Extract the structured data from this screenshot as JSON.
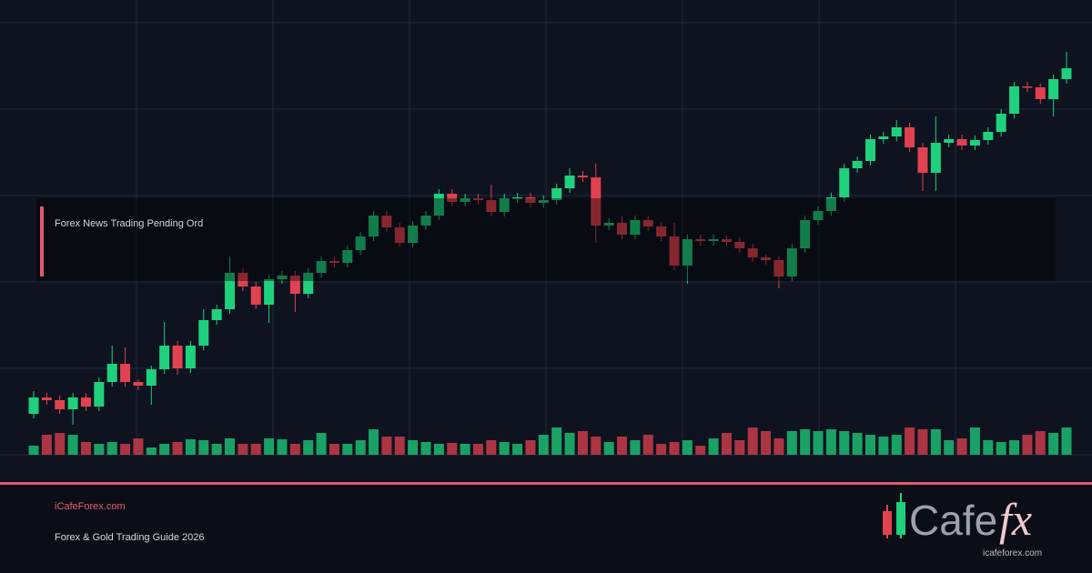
{
  "chart_data": {
    "type": "candlestick",
    "annotation": "Forex News Trading Pending Ord",
    "open": [
      45,
      63,
      60,
      50,
      63,
      53,
      80,
      100,
      80,
      76,
      94,
      120,
      95,
      120,
      148,
      160,
      200,
      185,
      165,
      193,
      197,
      177,
      200,
      213,
      211,
      225,
      240,
      263,
      250,
      233,
      252,
      263,
      287,
      278,
      282,
      280,
      267,
      282,
      283,
      277,
      280,
      293,
      307,
      305,
      252,
      255,
      242,
      258,
      251,
      240,
      208,
      237,
      235,
      237,
      234,
      227,
      217,
      214,
      196,
      227,
      258,
      268,
      283,
      315,
      323,
      347,
      350,
      360,
      338,
      310,
      343,
      347,
      340,
      346,
      355,
      375,
      405,
      404,
      391,
      413
    ],
    "high": [
      70,
      68,
      65,
      68,
      68,
      85,
      120,
      118,
      83,
      98,
      146,
      125,
      125,
      160,
      165,
      218,
      205,
      190,
      198,
      202,
      202,
      205,
      218,
      218,
      230,
      245,
      268,
      268,
      255,
      257,
      268,
      292,
      292,
      287,
      287,
      297,
      287,
      288,
      288,
      285,
      298,
      315,
      312,
      320,
      260,
      262,
      263,
      263,
      256,
      255,
      242,
      242,
      242,
      241,
      239,
      232,
      220,
      219,
      232,
      263,
      273,
      288,
      320,
      328,
      352,
      355,
      368,
      365,
      343,
      372,
      352,
      352,
      351,
      360,
      380,
      410,
      410,
      408,
      418,
      443
    ],
    "low": [
      40,
      55,
      45,
      33,
      48,
      48,
      75,
      75,
      71,
      55,
      89,
      88,
      90,
      115,
      143,
      155,
      180,
      160,
      145,
      188,
      157,
      172,
      195,
      206,
      206,
      220,
      235,
      245,
      228,
      228,
      247,
      258,
      273,
      273,
      275,
      262,
      262,
      277,
      272,
      272,
      275,
      288,
      300,
      233,
      247,
      237,
      237,
      246,
      235,
      203,
      188,
      230,
      230,
      229,
      222,
      212,
      209,
      183,
      191,
      222,
      253,
      263,
      278,
      310,
      318,
      342,
      345,
      333,
      290,
      290,
      338,
      335,
      335,
      341,
      350,
      370,
      399,
      386,
      372,
      408
    ],
    "close": [
      63,
      60,
      50,
      63,
      53,
      80,
      100,
      80,
      76,
      94,
      120,
      95,
      120,
      148,
      160,
      200,
      185,
      165,
      193,
      197,
      177,
      200,
      213,
      211,
      225,
      240,
      263,
      250,
      233,
      252,
      263,
      287,
      278,
      282,
      280,
      267,
      282,
      283,
      277,
      280,
      293,
      307,
      305,
      252,
      255,
      242,
      258,
      251,
      240,
      208,
      237,
      235,
      237,
      234,
      227,
      217,
      214,
      196,
      227,
      258,
      268,
      283,
      315,
      323,
      347,
      350,
      360,
      338,
      310,
      343,
      347,
      340,
      346,
      355,
      375,
      405,
      404,
      391,
      413,
      425
    ],
    "volume": [
      10,
      22,
      24,
      22,
      14,
      12,
      14,
      12,
      18,
      8,
      12,
      14,
      17,
      16,
      12,
      18,
      12,
      12,
      18,
      17,
      12,
      16,
      24,
      12,
      12,
      16,
      28,
      20,
      20,
      16,
      14,
      12,
      13,
      12,
      12,
      16,
      14,
      12,
      16,
      22,
      30,
      24,
      26,
      20,
      14,
      20,
      16,
      22,
      12,
      14,
      16,
      10,
      18,
      24,
      16,
      30,
      26,
      18,
      26,
      28,
      26,
      28,
      26,
      24,
      22,
      20,
      22,
      30,
      28,
      28,
      16,
      18,
      30,
      16,
      14,
      16,
      22,
      26,
      24,
      30
    ],
    "up_color": "#1fd17d",
    "down_color": "#e0424f",
    "ylim": [
      0,
      475
    ],
    "yticks": [
      0,
      95,
      190,
      285,
      380,
      475
    ],
    "volume_ylim": [
      0,
      100
    ],
    "grid": true
  },
  "footer": {
    "site": "iCafeForex.com",
    "tagline": "Forex & Gold Trading Guide 2026"
  },
  "logo": {
    "name": "Cafe",
    "mark": "fx",
    "url": "icafeforex.com"
  }
}
